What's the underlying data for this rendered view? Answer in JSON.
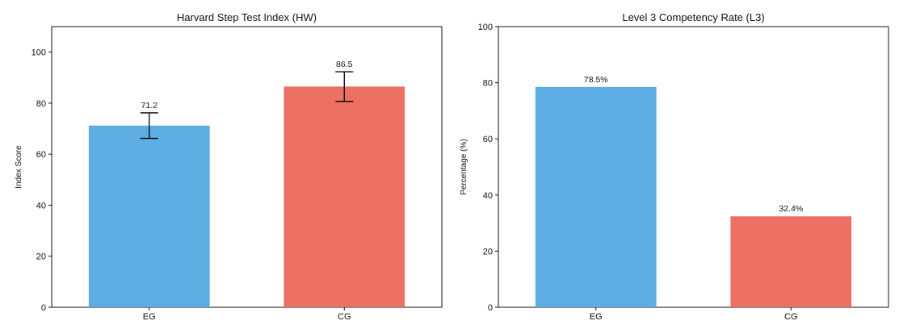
{
  "chart_data": [
    {
      "type": "bar",
      "title": "Harvard Step Test Index (HW)",
      "xlabel": "",
      "ylabel": "Index Score",
      "categories": [
        "EG",
        "CG"
      ],
      "values": [
        71.2,
        86.5
      ],
      "value_labels": [
        "71.2",
        "86.5"
      ],
      "error": [
        5.0,
        5.8
      ],
      "ylim": [
        0,
        110
      ],
      "yticks": [
        0,
        20,
        40,
        60,
        80,
        100
      ],
      "colors": [
        "#5DADE2",
        "#EC7063"
      ],
      "grid": false,
      "legend": "none"
    },
    {
      "type": "bar",
      "title": "Level 3 Competency Rate (L3)",
      "xlabel": "",
      "ylabel": "Percentage (%)",
      "categories": [
        "EG",
        "CG"
      ],
      "values": [
        78.5,
        32.4
      ],
      "value_labels": [
        "78.5%",
        "32.4%"
      ],
      "ylim": [
        0,
        100
      ],
      "yticks": [
        0,
        20,
        40,
        60,
        80,
        100
      ],
      "colors": [
        "#5DADE2",
        "#EC7063"
      ],
      "grid": false,
      "legend": "none"
    }
  ]
}
